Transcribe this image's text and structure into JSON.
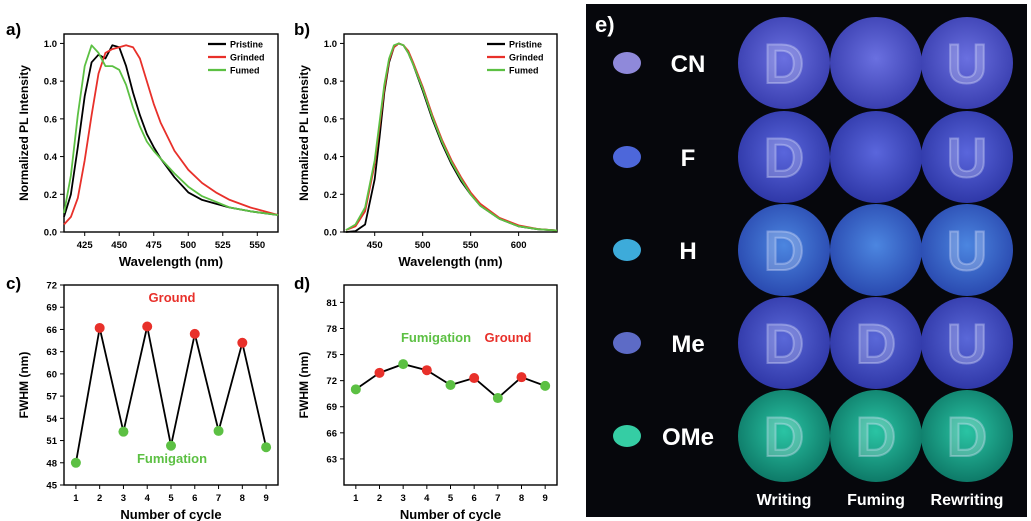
{
  "panels": {
    "a": "a)",
    "b": "b)",
    "c": "c)",
    "d": "d)",
    "e": "e)"
  },
  "colors": {
    "pristine": "#000000",
    "grinded": "#e8302a",
    "fumed": "#5cc043"
  },
  "chart_data": [
    {
      "panel": "a",
      "type": "line",
      "xlabel": "Wavelength (nm)",
      "ylabel": "Normalized PL Intensity",
      "xlim": [
        410,
        565
      ],
      "ylim": [
        0,
        1.05
      ],
      "xticks": [
        425,
        450,
        475,
        500,
        525,
        550
      ],
      "yticks": [
        "0.0",
        "0.2",
        "0.4",
        "0.6",
        "0.8",
        "1.0"
      ],
      "legend": [
        "Pristine",
        "Grinded",
        "Fumed"
      ],
      "legend_position": "top-right",
      "series": [
        {
          "name": "Pristine",
          "x": [
            410,
            415,
            420,
            425,
            430,
            435,
            440,
            445,
            450,
            455,
            460,
            465,
            470,
            475,
            480,
            490,
            500,
            510,
            520,
            530,
            545,
            565
          ],
          "y": [
            0.08,
            0.2,
            0.45,
            0.72,
            0.9,
            0.94,
            0.92,
            0.99,
            0.98,
            0.88,
            0.74,
            0.62,
            0.52,
            0.45,
            0.39,
            0.29,
            0.21,
            0.17,
            0.15,
            0.13,
            0.11,
            0.09
          ]
        },
        {
          "name": "Grinded",
          "x": [
            410,
            415,
            420,
            425,
            430,
            435,
            440,
            445,
            450,
            455,
            460,
            465,
            470,
            475,
            480,
            490,
            500,
            510,
            520,
            530,
            545,
            565
          ],
          "y": [
            0.04,
            0.08,
            0.18,
            0.38,
            0.62,
            0.84,
            0.95,
            0.97,
            0.98,
            0.99,
            0.98,
            0.92,
            0.8,
            0.68,
            0.58,
            0.43,
            0.33,
            0.26,
            0.21,
            0.17,
            0.13,
            0.09
          ]
        },
        {
          "name": "Fumed",
          "x": [
            410,
            415,
            420,
            425,
            430,
            435,
            440,
            445,
            450,
            455,
            460,
            465,
            470,
            475,
            480,
            490,
            500,
            510,
            520,
            530,
            545,
            565
          ],
          "y": [
            0.1,
            0.3,
            0.62,
            0.88,
            0.99,
            0.95,
            0.88,
            0.88,
            0.86,
            0.78,
            0.66,
            0.56,
            0.48,
            0.43,
            0.39,
            0.31,
            0.24,
            0.19,
            0.16,
            0.13,
            0.11,
            0.09
          ]
        }
      ]
    },
    {
      "panel": "b",
      "type": "line",
      "xlabel": "Wavelength (nm)",
      "ylabel": "Normalized PL Intensity",
      "xlim": [
        418,
        640
      ],
      "ylim": [
        0,
        1.05
      ],
      "xticks": [
        450,
        500,
        550,
        600
      ],
      "yticks": [
        "0.0",
        "0.2",
        "0.4",
        "0.6",
        "0.8",
        "1.0"
      ],
      "legend": [
        "Pristine",
        "Grinded",
        "Fumed"
      ],
      "legend_position": "top-right",
      "series": [
        {
          "name": "Pristine",
          "x": [
            420,
            430,
            440,
            450,
            455,
            460,
            465,
            470,
            475,
            480,
            485,
            490,
            500,
            510,
            520,
            530,
            540,
            550,
            560,
            580,
            600,
            620,
            640
          ],
          "y": [
            0.0,
            0.005,
            0.04,
            0.28,
            0.5,
            0.74,
            0.9,
            0.98,
            1.0,
            0.99,
            0.95,
            0.89,
            0.75,
            0.6,
            0.47,
            0.36,
            0.27,
            0.2,
            0.14,
            0.07,
            0.03,
            0.015,
            0.008
          ]
        },
        {
          "name": "Grinded",
          "x": [
            420,
            430,
            440,
            450,
            455,
            460,
            465,
            470,
            475,
            480,
            485,
            490,
            500,
            510,
            520,
            530,
            540,
            550,
            560,
            580,
            600,
            620,
            640
          ],
          "y": [
            0.01,
            0.03,
            0.11,
            0.36,
            0.56,
            0.76,
            0.91,
            0.98,
            1.0,
            0.99,
            0.96,
            0.9,
            0.77,
            0.62,
            0.49,
            0.38,
            0.29,
            0.21,
            0.15,
            0.075,
            0.035,
            0.016,
            0.008
          ]
        },
        {
          "name": "Fumed",
          "x": [
            420,
            430,
            440,
            450,
            455,
            460,
            465,
            470,
            475,
            480,
            485,
            490,
            500,
            510,
            520,
            530,
            540,
            550,
            560,
            580,
            600,
            620,
            640
          ],
          "y": [
            0.01,
            0.04,
            0.13,
            0.38,
            0.58,
            0.78,
            0.92,
            0.99,
            1.0,
            0.99,
            0.95,
            0.89,
            0.76,
            0.61,
            0.48,
            0.37,
            0.28,
            0.2,
            0.14,
            0.07,
            0.03,
            0.015,
            0.008
          ]
        }
      ]
    },
    {
      "panel": "c",
      "type": "scatter",
      "xlabel": "Number of cycle",
      "ylabel": "FWHM (nm)",
      "xlim": [
        0.5,
        9.5
      ],
      "ylim": [
        45,
        72
      ],
      "xticks": [
        "1",
        "2",
        "3",
        "4",
        "5",
        "6",
        "7",
        "8",
        "9"
      ],
      "yticks": [
        "45",
        "48",
        "51",
        "54",
        "57",
        "60",
        "63",
        "66",
        "69",
        "72"
      ],
      "x": [
        1,
        2,
        3,
        4,
        5,
        6,
        7,
        8,
        9
      ],
      "y": [
        48.0,
        66.2,
        52.2,
        66.4,
        50.3,
        65.4,
        52.3,
        64.2,
        50.1
      ],
      "point_colors": [
        "fumed",
        "grinded",
        "fumed",
        "grinded",
        "fumed",
        "grinded",
        "fumed",
        "grinded",
        "fumed"
      ],
      "annotations": [
        "Ground",
        "Fumigation"
      ]
    },
    {
      "panel": "d",
      "type": "scatter",
      "xlabel": "Number of cycle",
      "ylabel": "FWHM (nm)",
      "xlim": [
        0.5,
        9.5
      ],
      "ylim": [
        60,
        83
      ],
      "xticks": [
        "1",
        "2",
        "3",
        "4",
        "5",
        "6",
        "7",
        "8",
        "9"
      ],
      "yticks": [
        "63",
        "66",
        "69",
        "72",
        "75",
        "78",
        "81"
      ],
      "x": [
        1,
        2,
        3,
        4,
        5,
        6,
        7,
        8,
        9
      ],
      "y": [
        71.0,
        72.9,
        73.9,
        73.2,
        71.5,
        72.3,
        70.0,
        72.4,
        71.4
      ],
      "point_colors": [
        "fumed",
        "grinded",
        "fumed",
        "grinded",
        "fumed",
        "grinded",
        "fumed",
        "grinded",
        "fumed"
      ],
      "annotations": [
        "Fumigation",
        "Ground"
      ]
    }
  ],
  "photo_panel": {
    "rows": [
      "CN",
      "F",
      "H",
      "Me",
      "OMe"
    ],
    "columns": [
      "Writing",
      "Fuming",
      "Rewriting"
    ],
    "row_tints": [
      "#4a50c8",
      "#3c49c4",
      "#2f5fc8",
      "#3c4cc0",
      "#16a88e"
    ],
    "row_letters": [
      [
        "D",
        "",
        "U"
      ],
      [
        "D",
        "",
        "U"
      ],
      [
        "D",
        "",
        "U"
      ],
      [
        "D",
        "D",
        "U"
      ],
      [
        "D",
        "D",
        "D"
      ]
    ]
  }
}
